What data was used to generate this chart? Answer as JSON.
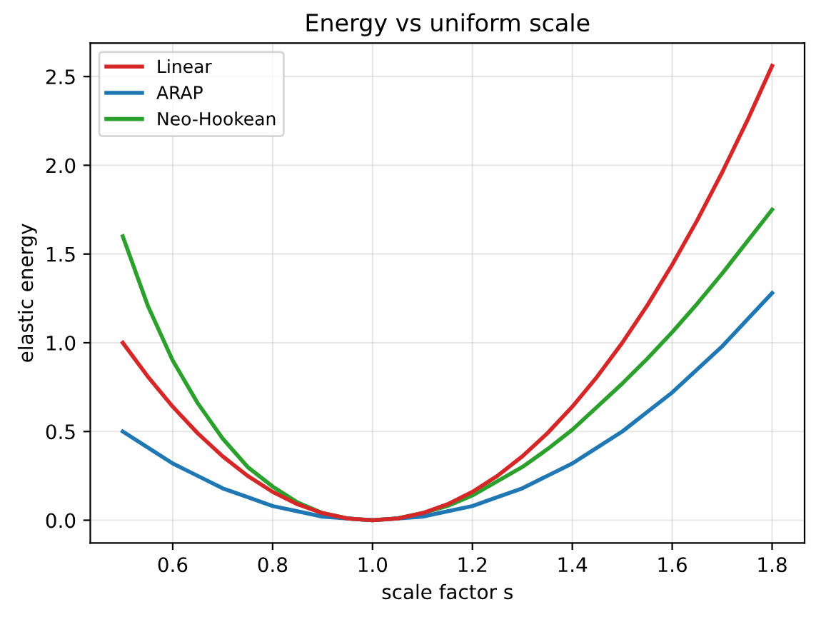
{
  "chart_data": {
    "type": "line",
    "title": "Energy vs uniform scale",
    "xlabel": "scale factor s",
    "ylabel": "elastic energy",
    "x": [
      0.5,
      0.55,
      0.6,
      0.65,
      0.7,
      0.75,
      0.8,
      0.85,
      0.9,
      0.95,
      1.0,
      1.05,
      1.1,
      1.15,
      1.2,
      1.25,
      1.3,
      1.35,
      1.4,
      1.45,
      1.5,
      1.55,
      1.6,
      1.65,
      1.7,
      1.75,
      1.8
    ],
    "series": [
      {
        "name": "Linear",
        "color": "#d62728",
        "values": [
          1.0,
          0.81,
          0.64,
          0.49,
          0.36,
          0.25,
          0.16,
          0.09,
          0.04,
          0.01,
          0.0,
          0.01,
          0.04,
          0.09,
          0.16,
          0.25,
          0.36,
          0.49,
          0.64,
          0.81,
          1.0,
          1.21,
          1.44,
          1.69,
          1.96,
          2.25,
          2.56
        ]
      },
      {
        "name": "ARAP",
        "color": "#1f77b4",
        "values": [
          0.5,
          0.41,
          0.32,
          0.25,
          0.18,
          0.13,
          0.08,
          0.05,
          0.02,
          0.01,
          0.0,
          0.01,
          0.02,
          0.05,
          0.08,
          0.13,
          0.18,
          0.25,
          0.32,
          0.41,
          0.5,
          0.61,
          0.72,
          0.85,
          0.98,
          1.13,
          1.28
        ]
      },
      {
        "name": "Neo-Hookean",
        "color": "#2ca02c",
        "values": [
          1.6,
          1.21,
          0.9,
          0.66,
          0.46,
          0.3,
          0.19,
          0.1,
          0.04,
          0.01,
          0.0,
          0.01,
          0.04,
          0.08,
          0.14,
          0.22,
          0.3,
          0.4,
          0.51,
          0.64,
          0.77,
          0.91,
          1.06,
          1.22,
          1.39,
          1.57,
          1.75
        ]
      }
    ],
    "xlim": [
      0.435,
      1.865
    ],
    "xticks": [
      {
        "value": 0.6,
        "label": "0.6"
      },
      {
        "value": 0.8,
        "label": "0.8"
      },
      {
        "value": 1.0,
        "label": "1.0"
      },
      {
        "value": 1.2,
        "label": "1.2"
      },
      {
        "value": 1.4,
        "label": "1.4"
      },
      {
        "value": 1.6,
        "label": "1.6"
      },
      {
        "value": 1.8,
        "label": "1.8"
      }
    ],
    "ylim": [
      -0.128,
      2.688
    ],
    "yticks": [
      {
        "value": 0.0,
        "label": "0.0"
      },
      {
        "value": 0.5,
        "label": "0.5"
      },
      {
        "value": 1.0,
        "label": "1.0"
      },
      {
        "value": 1.5,
        "label": "1.5"
      },
      {
        "value": 2.0,
        "label": "2.0"
      },
      {
        "value": 2.5,
        "label": "2.5"
      }
    ],
    "grid": true,
    "legend": "top left",
    "marker": "none",
    "line_style": "solid"
  }
}
